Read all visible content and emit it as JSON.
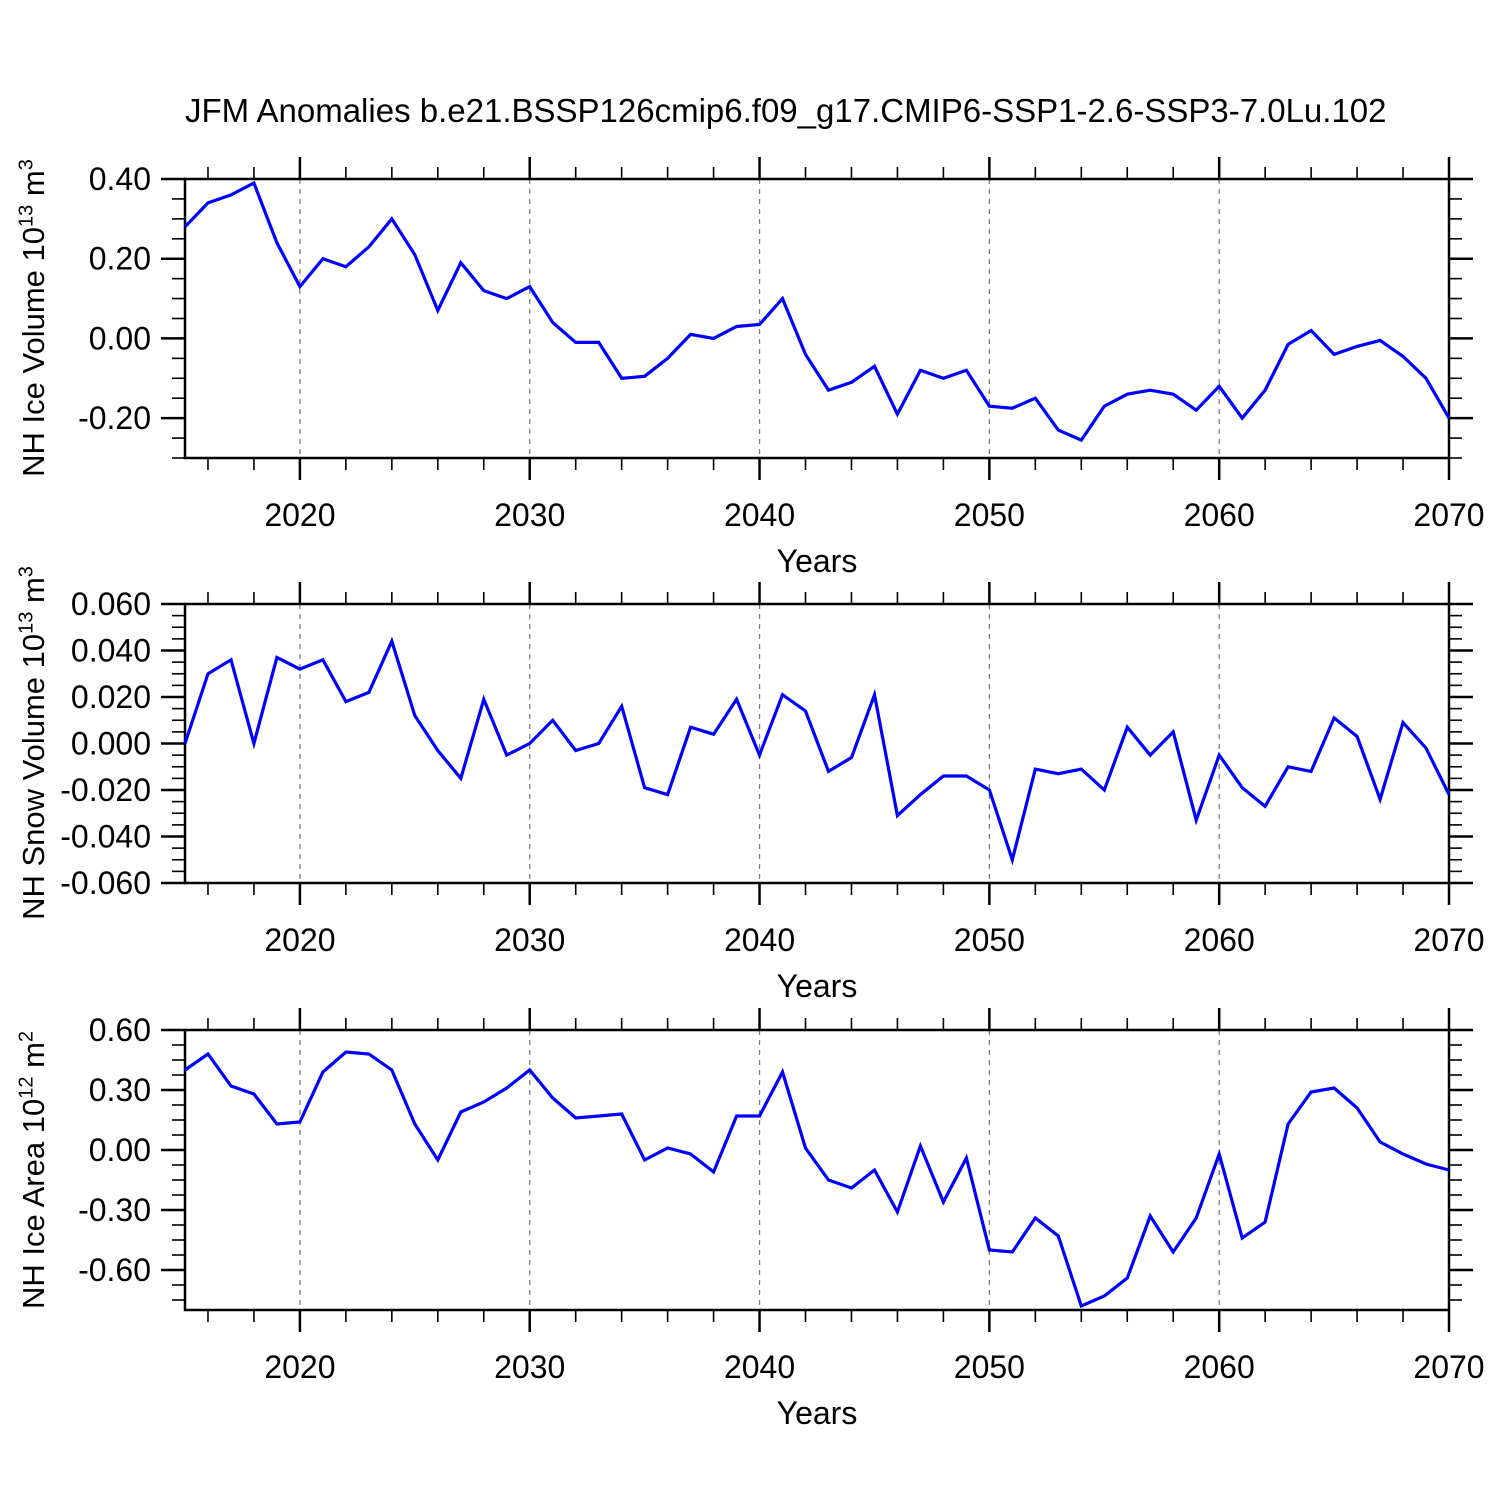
{
  "title": "JFM Anomalies b.e21.BSSP126cmip6.f09_g17.CMIP6-SSP1-2.6-SSP3-7.0Lu.102",
  "colors": {
    "line": "#0000ff",
    "axis": "#000000",
    "grid": "#808080",
    "background": "#ffffff",
    "text": "#000000"
  },
  "x_axis": {
    "label": "Years",
    "range": [
      2015,
      2070
    ],
    "major_ticks": [
      2020,
      2030,
      2040,
      2050,
      2060,
      2070
    ],
    "minor_step": 2,
    "gridline_years": [
      2020,
      2030,
      2040,
      2050,
      2060
    ]
  },
  "years": [
    2015,
    2016,
    2017,
    2018,
    2019,
    2020,
    2021,
    2022,
    2023,
    2024,
    2025,
    2026,
    2027,
    2028,
    2029,
    2030,
    2031,
    2032,
    2033,
    2034,
    2035,
    2036,
    2037,
    2038,
    2039,
    2040,
    2041,
    2042,
    2043,
    2044,
    2045,
    2046,
    2047,
    2048,
    2049,
    2050,
    2051,
    2052,
    2053,
    2054,
    2055,
    2056,
    2057,
    2058,
    2059,
    2060,
    2061,
    2062,
    2063,
    2064,
    2065,
    2066,
    2067,
    2068,
    2069,
    2070
  ],
  "chart_data": [
    {
      "type": "line",
      "series_name": "NH Ice Volume anomaly",
      "ylabel": {
        "pre": "NH Ice Volume 10",
        "sup1": "13",
        "mid": " m",
        "sup2": "3"
      },
      "ylim": [
        -0.3,
        0.4
      ],
      "ytick_values": [
        0.4,
        0.2,
        0.0,
        -0.2
      ],
      "ytick_labels": [
        "0.40",
        "0.20",
        "0.00",
        "-0.20"
      ],
      "ytick_minor_step": 0.05,
      "grid": "dashed-vertical",
      "values": [
        0.28,
        0.34,
        0.36,
        0.39,
        0.24,
        0.13,
        0.2,
        0.18,
        0.23,
        0.3,
        0.21,
        0.07,
        0.19,
        0.12,
        0.1,
        0.13,
        0.04,
        -0.01,
        -0.01,
        -0.1,
        -0.095,
        -0.05,
        0.01,
        0.0,
        0.03,
        0.035,
        0.1,
        -0.04,
        -0.13,
        -0.11,
        -0.07,
        -0.19,
        -0.08,
        -0.1,
        -0.08,
        -0.17,
        -0.175,
        -0.15,
        -0.23,
        -0.255,
        -0.17,
        -0.14,
        -0.13,
        -0.14,
        -0.18,
        -0.12,
        -0.2,
        -0.13,
        -0.015,
        0.02,
        -0.04,
        -0.02,
        -0.005,
        -0.045,
        -0.1,
        -0.2
      ]
    },
    {
      "type": "line",
      "series_name": "NH Snow Volume anomaly",
      "ylabel": {
        "pre": "NH Snow Volume 10",
        "sup1": "13",
        "mid": " m",
        "sup2": "3"
      },
      "ylim": [
        -0.06,
        0.06
      ],
      "ytick_values": [
        0.06,
        0.04,
        0.02,
        0.0,
        -0.02,
        -0.04,
        -0.06
      ],
      "ytick_labels": [
        "0.060",
        "0.040",
        "0.020",
        "0.000",
        "-0.020",
        "-0.040",
        "-0.060"
      ],
      "ytick_minor_step": 0.005,
      "grid": "dashed-vertical",
      "values": [
        0.0,
        0.03,
        0.036,
        0.0,
        0.037,
        0.032,
        0.036,
        0.018,
        0.022,
        0.044,
        0.012,
        -0.003,
        -0.015,
        0.019,
        -0.005,
        0.0,
        0.01,
        -0.003,
        0.0,
        0.016,
        -0.019,
        -0.022,
        0.007,
        0.004,
        0.019,
        -0.005,
        0.021,
        0.014,
        -0.012,
        -0.006,
        0.021,
        -0.031,
        -0.022,
        -0.014,
        -0.014,
        -0.02,
        -0.05,
        -0.011,
        -0.013,
        -0.011,
        -0.02,
        0.007,
        -0.005,
        0.005,
        -0.033,
        -0.005,
        -0.019,
        -0.027,
        -0.01,
        -0.012,
        0.011,
        0.003,
        -0.024,
        0.009,
        -0.002,
        -0.022
      ]
    },
    {
      "type": "line",
      "series_name": "NH Ice Area anomaly",
      "ylabel": {
        "pre": "NH Ice Area 10",
        "sup1": "12",
        "mid": " m",
        "sup2": "2"
      },
      "ylim": [
        -0.8,
        0.6
      ],
      "ytick_values": [
        0.6,
        0.3,
        0.0,
        -0.3,
        -0.6
      ],
      "ytick_labels": [
        "0.60",
        "0.30",
        "0.00",
        "-0.30",
        "-0.60"
      ],
      "ytick_minor_step": 0.075,
      "grid": "dashed-vertical",
      "values": [
        0.4,
        0.48,
        0.32,
        0.28,
        0.13,
        0.14,
        0.39,
        0.49,
        0.48,
        0.4,
        0.13,
        -0.05,
        0.19,
        0.24,
        0.31,
        0.4,
        0.26,
        0.16,
        0.17,
        0.18,
        -0.05,
        0.01,
        -0.02,
        -0.11,
        0.17,
        0.17,
        0.39,
        0.01,
        -0.15,
        -0.19,
        -0.1,
        -0.31,
        0.02,
        -0.26,
        -0.04,
        -0.5,
        -0.51,
        -0.34,
        -0.43,
        -0.78,
        -0.73,
        -0.64,
        -0.33,
        -0.51,
        -0.34,
        -0.02,
        -0.44,
        -0.36,
        0.13,
        0.29,
        0.31,
        0.21,
        0.04,
        -0.02,
        -0.07,
        -0.1
      ]
    }
  ]
}
